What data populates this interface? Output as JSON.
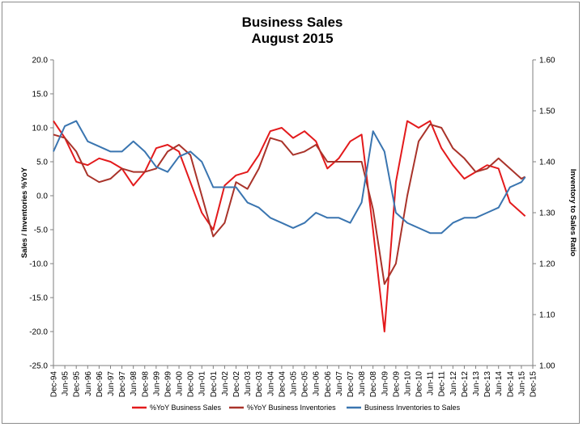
{
  "chart_data": {
    "type": "line",
    "title": "Business Sales",
    "subtitle": "August 2015",
    "ylabel_left": "Sales / Inventories %YoY",
    "ylabel_right": "Inventory to Sales Ratio",
    "ylim_left": [
      -25,
      20
    ],
    "ylim_right": [
      1.0,
      1.6
    ],
    "yticks_left": [
      "20.0",
      "15.0",
      "10.0",
      "5.0",
      "0.0",
      "-5.0",
      "-10.0",
      "-15.0",
      "-20.0",
      "-25.0"
    ],
    "yticks_right": [
      "1.60",
      "1.50",
      "1.40",
      "1.30",
      "1.20",
      "1.10",
      "1.00"
    ],
    "x_start": "Dec-94",
    "x_end": "Dec-15",
    "x_ticks": [
      "Dec-94",
      "Jun-95",
      "Dec-95",
      "Jun-96",
      "Dec-96",
      "Jun-97",
      "Dec-97",
      "Jun-98",
      "Dec-98",
      "Jun-99",
      "Dec-99",
      "Jun-00",
      "Dec-00",
      "Jun-01",
      "Dec-01",
      "Jun-02",
      "Dec-02",
      "Jun-03",
      "Dec-03",
      "Jun-04",
      "Dec-04",
      "Jun-05",
      "Dec-05",
      "Jun-06",
      "Dec-06",
      "Jun-07",
      "Dec-07",
      "Jun-08",
      "Dec-08",
      "Jun-09",
      "Dec-09",
      "Jun-10",
      "Dec-10",
      "Jun-11",
      "Dec-11",
      "Jun-12",
      "Dec-12",
      "Jun-13",
      "Dec-13",
      "Jun-14",
      "Dec-14",
      "Jun-15",
      "Dec-15"
    ],
    "grid": false,
    "legend": "bottom",
    "series": [
      {
        "name": "%YoY Business Sales",
        "axis": "left",
        "color": "#e31a1c",
        "points": [
          [
            "Dec-94",
            11.0
          ],
          [
            "Jun-95",
            8.5
          ],
          [
            "Dec-95",
            5.0
          ],
          [
            "Jun-96",
            4.5
          ],
          [
            "Dec-96",
            5.5
          ],
          [
            "Jun-97",
            5.0
          ],
          [
            "Dec-97",
            4.0
          ],
          [
            "Jun-98",
            1.5
          ],
          [
            "Dec-98",
            3.5
          ],
          [
            "Jun-99",
            7.0
          ],
          [
            "Dec-99",
            7.5
          ],
          [
            "Jun-00",
            6.5
          ],
          [
            "Dec-00",
            2.0
          ],
          [
            "Jun-01",
            -2.5
          ],
          [
            "Dec-01",
            -5.0
          ],
          [
            "Jun-02",
            1.5
          ],
          [
            "Dec-02",
            3.0
          ],
          [
            "Jun-03",
            3.5
          ],
          [
            "Dec-03",
            6.0
          ],
          [
            "Jun-04",
            9.5
          ],
          [
            "Dec-04",
            10.0
          ],
          [
            "Jun-05",
            8.5
          ],
          [
            "Dec-05",
            9.5
          ],
          [
            "Jun-06",
            8.0
          ],
          [
            "Dec-06",
            4.0
          ],
          [
            "Jun-07",
            5.5
          ],
          [
            "Dec-07",
            8.0
          ],
          [
            "Jun-08",
            9.0
          ],
          [
            "Dec-08",
            -5.0
          ],
          [
            "Jun-09",
            -20.0
          ],
          [
            "Dec-09",
            2.0
          ],
          [
            "Jun-10",
            11.0
          ],
          [
            "Dec-10",
            10.0
          ],
          [
            "Jun-11",
            11.0
          ],
          [
            "Dec-11",
            7.0
          ],
          [
            "Jun-12",
            4.5
          ],
          [
            "Dec-12",
            2.5
          ],
          [
            "Jun-13",
            3.5
          ],
          [
            "Dec-13",
            4.5
          ],
          [
            "Jun-14",
            4.0
          ],
          [
            "Dec-14",
            -1.0
          ],
          [
            "Jun-15",
            -2.5
          ],
          [
            "Aug-15",
            -3.0
          ]
        ]
      },
      {
        "name": "%YoY Business Inventories",
        "axis": "left",
        "color": "#a9332a",
        "points": [
          [
            "Dec-94",
            9.0
          ],
          [
            "Jun-95",
            8.5
          ],
          [
            "Dec-95",
            6.5
          ],
          [
            "Jun-96",
            3.0
          ],
          [
            "Dec-96",
            2.0
          ],
          [
            "Jun-97",
            2.5
          ],
          [
            "Dec-97",
            4.0
          ],
          [
            "Jun-98",
            3.5
          ],
          [
            "Dec-98",
            3.5
          ],
          [
            "Jun-99",
            4.0
          ],
          [
            "Dec-99",
            6.5
          ],
          [
            "Jun-00",
            7.5
          ],
          [
            "Dec-00",
            6.0
          ],
          [
            "Jun-01",
            0.0
          ],
          [
            "Dec-01",
            -6.0
          ],
          [
            "Jun-02",
            -4.0
          ],
          [
            "Dec-02",
            2.0
          ],
          [
            "Jun-03",
            1.0
          ],
          [
            "Dec-03",
            4.0
          ],
          [
            "Jun-04",
            8.5
          ],
          [
            "Dec-04",
            8.0
          ],
          [
            "Jun-05",
            6.0
          ],
          [
            "Dec-05",
            6.5
          ],
          [
            "Jun-06",
            7.5
          ],
          [
            "Dec-06",
            5.0
          ],
          [
            "Jun-07",
            5.0
          ],
          [
            "Dec-07",
            5.0
          ],
          [
            "Jun-08",
            5.0
          ],
          [
            "Dec-08",
            -2.0
          ],
          [
            "Jun-09",
            -13.0
          ],
          [
            "Dec-09",
            -10.0
          ],
          [
            "Jun-10",
            0.0
          ],
          [
            "Dec-10",
            8.0
          ],
          [
            "Jun-11",
            10.5
          ],
          [
            "Dec-11",
            10.0
          ],
          [
            "Jun-12",
            7.0
          ],
          [
            "Dec-12",
            5.5
          ],
          [
            "Jun-13",
            3.5
          ],
          [
            "Dec-13",
            4.0
          ],
          [
            "Jun-14",
            5.5
          ],
          [
            "Dec-14",
            4.0
          ],
          [
            "Jun-15",
            2.5
          ],
          [
            "Aug-15",
            2.8
          ]
        ]
      },
      {
        "name": "Business Inventories to Sales",
        "axis": "right",
        "color": "#3a75b0",
        "points": [
          [
            "Dec-94",
            1.42
          ],
          [
            "Jun-95",
            1.47
          ],
          [
            "Dec-95",
            1.48
          ],
          [
            "Jun-96",
            1.44
          ],
          [
            "Dec-96",
            1.43
          ],
          [
            "Jun-97",
            1.42
          ],
          [
            "Dec-97",
            1.42
          ],
          [
            "Jun-98",
            1.44
          ],
          [
            "Dec-98",
            1.42
          ],
          [
            "Jun-99",
            1.39
          ],
          [
            "Dec-99",
            1.38
          ],
          [
            "Jun-00",
            1.41
          ],
          [
            "Dec-00",
            1.42
          ],
          [
            "Jun-01",
            1.4
          ],
          [
            "Dec-01",
            1.35
          ],
          [
            "Jun-02",
            1.35
          ],
          [
            "Dec-02",
            1.35
          ],
          [
            "Jun-03",
            1.32
          ],
          [
            "Dec-03",
            1.31
          ],
          [
            "Jun-04",
            1.29
          ],
          [
            "Dec-04",
            1.28
          ],
          [
            "Jun-05",
            1.27
          ],
          [
            "Dec-05",
            1.28
          ],
          [
            "Jun-06",
            1.3
          ],
          [
            "Dec-06",
            1.29
          ],
          [
            "Jun-07",
            1.29
          ],
          [
            "Dec-07",
            1.28
          ],
          [
            "Jun-08",
            1.32
          ],
          [
            "Dec-08",
            1.46
          ],
          [
            "Jun-09",
            1.42
          ],
          [
            "Dec-09",
            1.3
          ],
          [
            "Jun-10",
            1.28
          ],
          [
            "Dec-10",
            1.27
          ],
          [
            "Jun-11",
            1.26
          ],
          [
            "Dec-11",
            1.26
          ],
          [
            "Jun-12",
            1.28
          ],
          [
            "Dec-12",
            1.29
          ],
          [
            "Jun-13",
            1.29
          ],
          [
            "Dec-13",
            1.3
          ],
          [
            "Jun-14",
            1.31
          ],
          [
            "Dec-14",
            1.35
          ],
          [
            "Jun-15",
            1.36
          ],
          [
            "Aug-15",
            1.37
          ]
        ]
      }
    ]
  }
}
